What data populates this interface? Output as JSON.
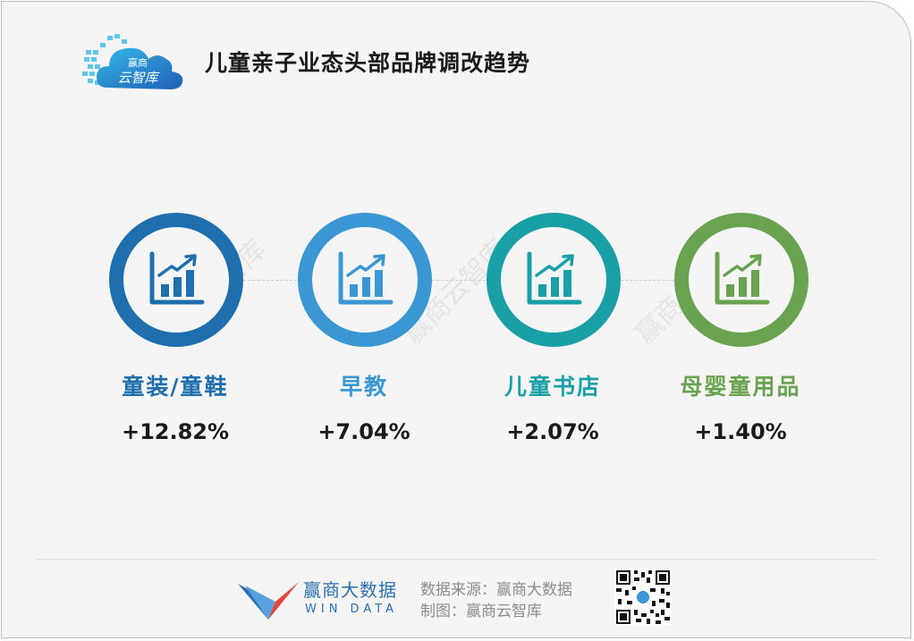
{
  "header": {
    "logo_text_top": "赢商",
    "logo_text_bottom": "云智库",
    "title": "儿童亲子业态头部品牌调改趋势"
  },
  "metrics": [
    {
      "label": "童装/童鞋",
      "value": "+12.82%",
      "color": "#1f6fae",
      "icon": "growth-chart-icon"
    },
    {
      "label": "早教",
      "value": "+7.04%",
      "color": "#3a97d4",
      "icon": "growth-chart-icon"
    },
    {
      "label": "儿童书店",
      "value": "+2.07%",
      "color": "#18a0a6",
      "icon": "growth-chart-icon"
    },
    {
      "label": "母婴童用品",
      "value": "+1.40%",
      "color": "#6aa34f",
      "icon": "growth-chart-icon"
    }
  ],
  "watermark": "赢商云智库",
  "footer": {
    "brand_name": "赢商大数据",
    "brand_sub": "WIN DATA",
    "source": "数据来源：赢商大数据",
    "credit": "制图：赢商云智库"
  },
  "colors": {
    "title": "#1a1a1a",
    "background": "#f5f5f5",
    "footer_text": "#8c8c8c",
    "brand_blue": "#2a6fb0",
    "brand_red": "#e8443a"
  }
}
